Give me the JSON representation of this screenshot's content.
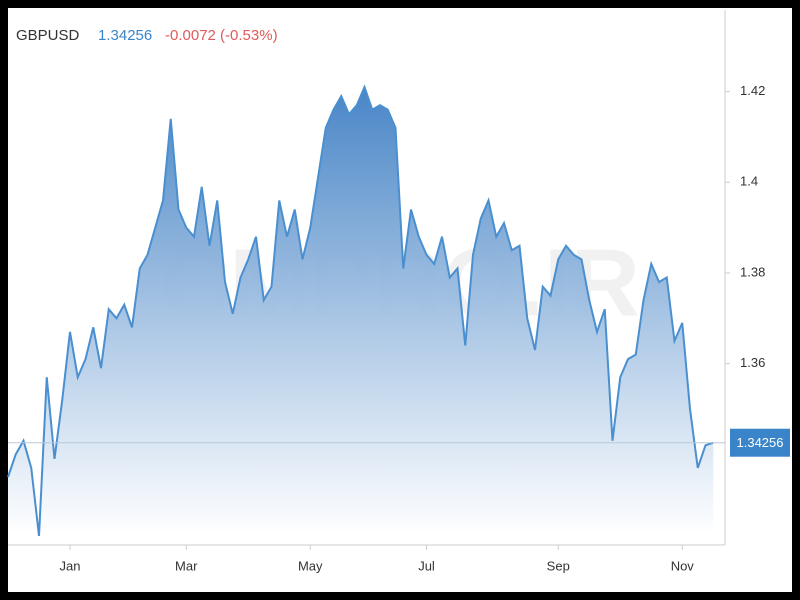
{
  "chart_data": {
    "type": "area",
    "title": "GBPUSD",
    "last_value": 1.34256,
    "change_text": "-0.0072 (-0.53%)",
    "change_color": "#e05a5a",
    "watermark": "CMPRO.IR",
    "categories": [
      null,
      null,
      null,
      null,
      null,
      null,
      null,
      null,
      "Jan",
      null,
      null,
      null,
      null,
      null,
      null,
      null,
      null,
      null,
      null,
      null,
      null,
      null,
      null,
      "Mar",
      null,
      null,
      null,
      null,
      null,
      null,
      null,
      null,
      null,
      null,
      null,
      null,
      null,
      null,
      null,
      "May",
      null,
      null,
      null,
      null,
      null,
      null,
      null,
      null,
      null,
      null,
      null,
      null,
      null,
      null,
      "Jul",
      null,
      null,
      null,
      null,
      null,
      null,
      null,
      null,
      null,
      null,
      null,
      null,
      null,
      null,
      null,
      null,
      "Sep",
      null,
      null,
      null,
      null,
      null,
      null,
      null,
      null,
      null,
      null,
      null,
      null,
      null,
      null,
      null,
      "Nov",
      null,
      null,
      null,
      null
    ],
    "series": [
      {
        "name": "GBPUSD",
        "color": "#4a8fd0",
        "values": [
          1.335,
          1.34,
          1.343,
          1.337,
          1.322,
          1.357,
          1.339,
          1.352,
          1.367,
          1.357,
          1.361,
          1.368,
          1.359,
          1.372,
          1.37,
          1.373,
          1.368,
          1.381,
          1.384,
          1.39,
          1.396,
          1.414,
          1.394,
          1.39,
          1.388,
          1.399,
          1.386,
          1.396,
          1.378,
          1.371,
          1.379,
          1.383,
          1.388,
          1.374,
          1.377,
          1.396,
          1.388,
          1.394,
          1.383,
          1.39,
          1.401,
          1.412,
          1.416,
          1.419,
          1.415,
          1.417,
          1.421,
          1.416,
          1.417,
          1.416,
          1.412,
          1.381,
          1.394,
          1.388,
          1.384,
          1.382,
          1.388,
          1.379,
          1.381,
          1.364,
          1.384,
          1.392,
          1.396,
          1.388,
          1.391,
          1.385,
          1.386,
          1.37,
          1.363,
          1.377,
          1.375,
          1.383,
          1.386,
          1.384,
          1.383,
          1.374,
          1.367,
          1.372,
          1.343,
          1.357,
          1.361,
          1.362,
          1.374,
          1.382,
          1.378,
          1.379,
          1.365,
          1.369,
          1.35,
          1.337,
          1.342,
          1.34256
        ]
      }
    ],
    "ylim": [
      1.32,
      1.438
    ],
    "yticks": [
      1.36,
      1.38,
      1.4,
      1.42
    ],
    "grid": false,
    "label_color": "#3a84c9"
  }
}
